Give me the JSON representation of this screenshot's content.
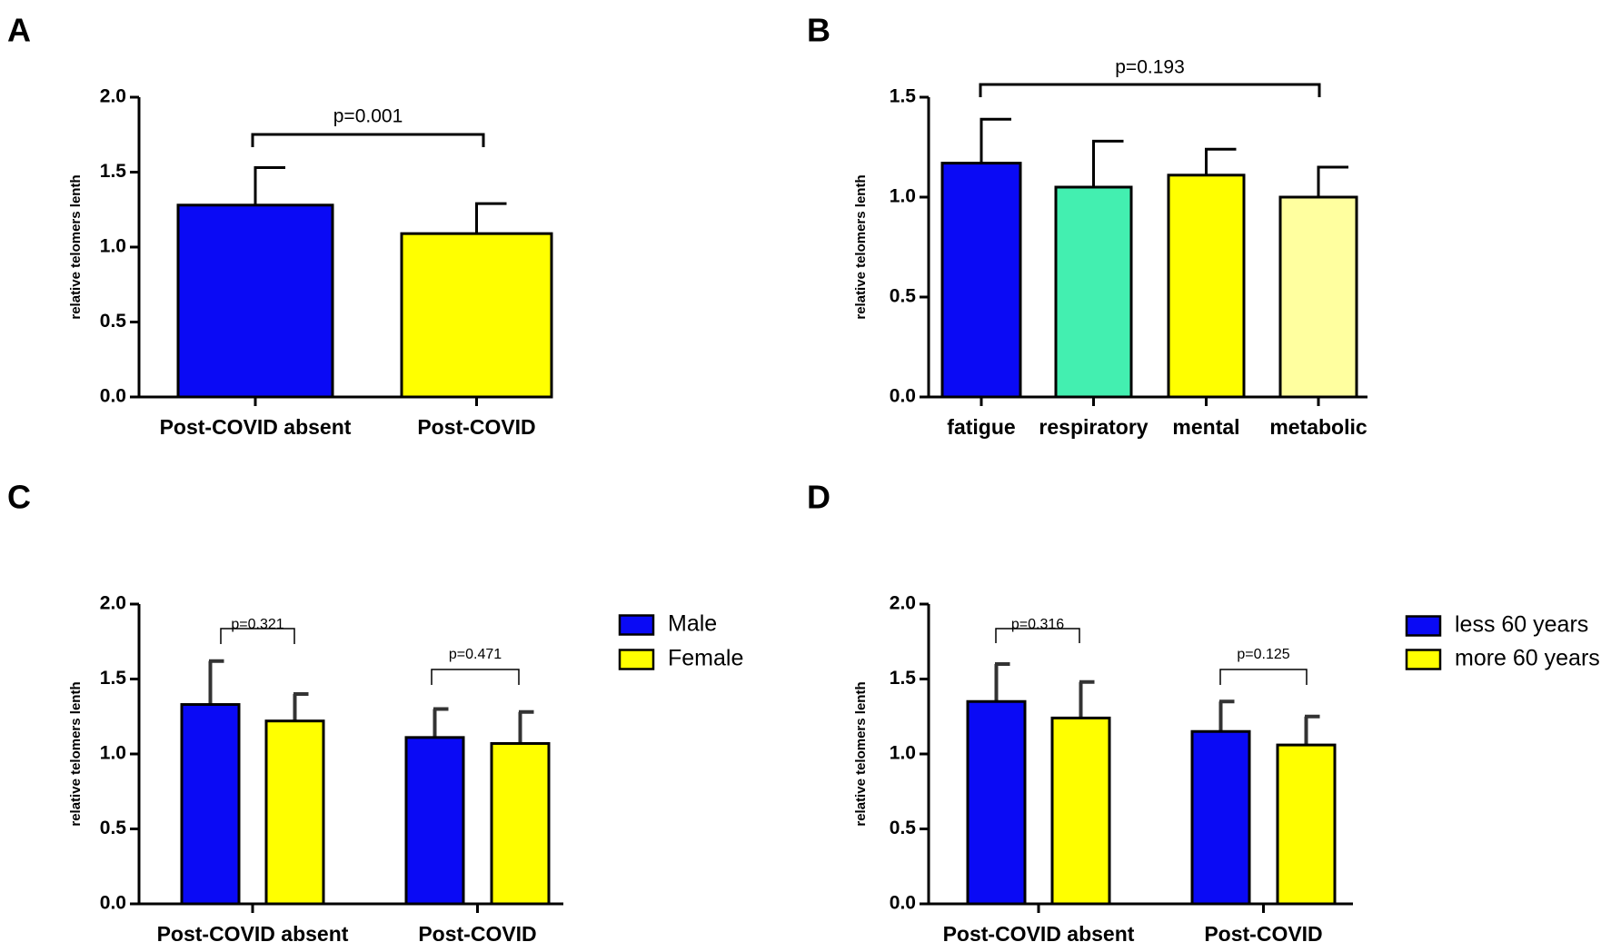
{
  "chart_data": [
    {
      "panel": "A",
      "type": "bar",
      "ylabel": "relative telomers lenth",
      "ylim": [
        0,
        2.0
      ],
      "yticks": [
        "0.0",
        "0.5",
        "1.0",
        "1.5",
        "2.0"
      ],
      "categories": [
        "Post-COVID absent",
        "Post-COVID"
      ],
      "values": [
        1.28,
        1.09
      ],
      "errors": [
        0.25,
        0.2
      ],
      "colors": [
        "#0a0af5",
        "#ffff00"
      ],
      "annotations": [
        {
          "text": "p=0.001"
        }
      ]
    },
    {
      "panel": "B",
      "type": "bar",
      "ylabel": "relative telomers lenth",
      "ylim": [
        0,
        1.5
      ],
      "yticks": [
        "0.0",
        "0.5",
        "1.0",
        "1.5"
      ],
      "categories": [
        "fatigue",
        "respiratory",
        "mental",
        "metabolic"
      ],
      "values": [
        1.17,
        1.05,
        1.11,
        1.0
      ],
      "errors": [
        0.22,
        0.23,
        0.13,
        0.15
      ],
      "colors": [
        "#0a0af5",
        "#43efb0",
        "#ffff00",
        "#ffff9f"
      ],
      "annotations": [
        {
          "text": "p=0.193"
        }
      ]
    },
    {
      "panel": "C",
      "type": "bar",
      "ylabel": "relative telomers lenth",
      "ylim": [
        0,
        2.0
      ],
      "yticks": [
        "0.0",
        "0.5",
        "1.0",
        "1.5",
        "2.0"
      ],
      "categories": [
        "Post-COVID absent",
        "Post-COVID"
      ],
      "series": [
        {
          "name": "Male",
          "color": "#0a0af5",
          "values": [
            1.33,
            1.11
          ],
          "errors": [
            0.29,
            0.19
          ]
        },
        {
          "name": "Female",
          "color": "#ffff00",
          "values": [
            1.22,
            1.07
          ],
          "errors": [
            0.18,
            0.21
          ]
        }
      ],
      "annotations": [
        {
          "text": "p=0.321"
        },
        {
          "text": "p=0.471"
        }
      ],
      "legend": [
        "Male",
        "Female"
      ]
    },
    {
      "panel": "D",
      "type": "bar",
      "ylabel": "relative telomers lenth",
      "ylim": [
        0,
        2.0
      ],
      "yticks": [
        "0.0",
        "0.5",
        "1.0",
        "1.5",
        "2.0"
      ],
      "categories": [
        "Post-COVID absent",
        "Post-COVID"
      ],
      "series": [
        {
          "name": "less 60 years",
          "color": "#0a0af5",
          "values": [
            1.35,
            1.15
          ],
          "errors": [
            0.25,
            0.2
          ]
        },
        {
          "name": "more 60 years",
          "color": "#ffff00",
          "values": [
            1.24,
            1.06
          ],
          "errors": [
            0.24,
            0.19
          ]
        }
      ],
      "annotations": [
        {
          "text": "p=0.316"
        },
        {
          "text": "p=0.125"
        }
      ],
      "legend": [
        "less 60 years",
        "more 60 years"
      ]
    }
  ]
}
